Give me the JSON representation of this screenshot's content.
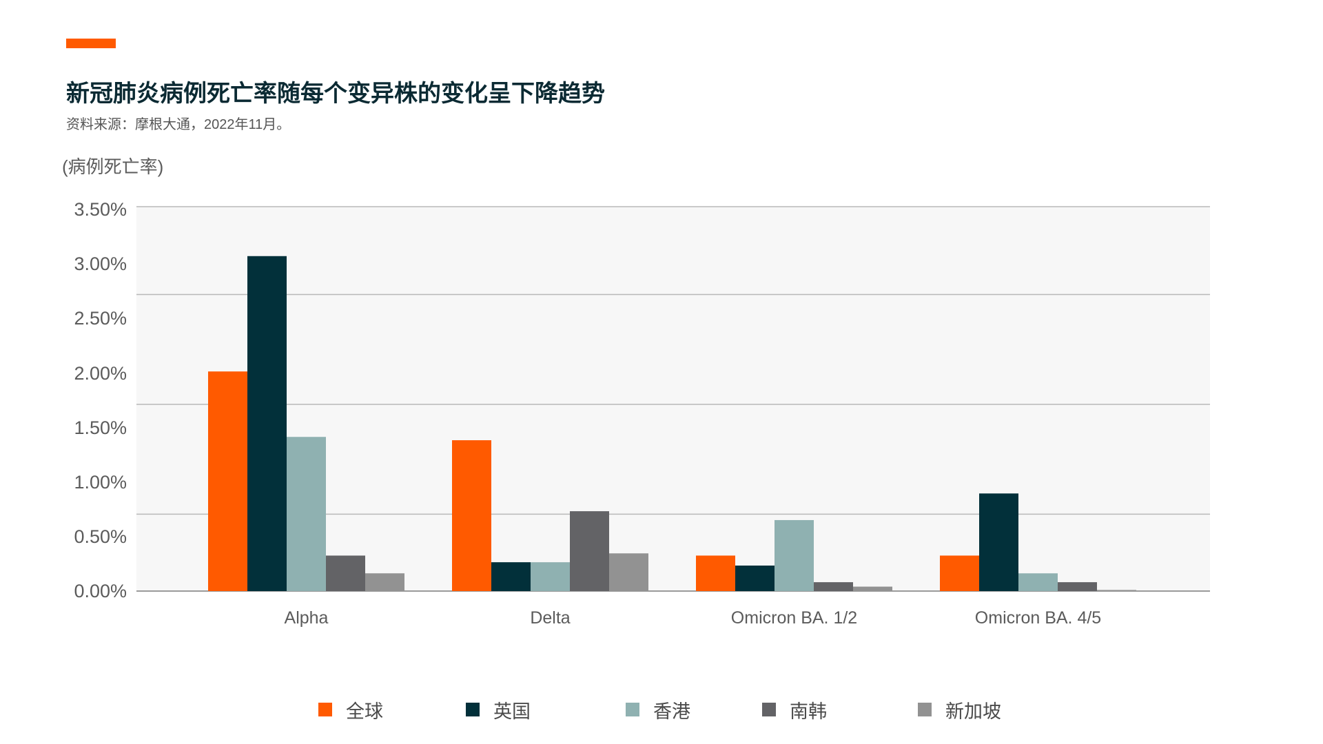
{
  "header": {
    "title": "新冠肺炎病例死亡率随每个变异株的变化呈下降趋势",
    "source": "资料来源：摩根大通，2022年11月。",
    "accent_color": "#ff5a00"
  },
  "chart_data": {
    "type": "bar",
    "title": "新冠肺炎病例死亡率随每个变异株的变化呈下降趋势",
    "ylabel": "(病例死亡率)",
    "xlabel": "",
    "ylim": [
      0,
      3.5
    ],
    "yticks": [
      "0.00%",
      "0.50%",
      "1.00%",
      "1.50%",
      "2.00%",
      "2.50%",
      "3.00%",
      "3.50%"
    ],
    "ytick_values": [
      0,
      0.5,
      1.0,
      1.5,
      2.0,
      2.5,
      3.0,
      3.5
    ],
    "categories": [
      "Alpha",
      "Delta",
      "Omicron BA. 1/2",
      "Omicron BA. 4/5"
    ],
    "series": [
      {
        "name": "全球",
        "color": "#ff5a00",
        "values": [
          1.98,
          1.36,
          0.32,
          0.32
        ]
      },
      {
        "name": "英国",
        "color": "#02303a",
        "values": [
          3.02,
          0.26,
          0.23,
          0.88
        ]
      },
      {
        "name": "香港",
        "color": "#8fb1b1",
        "values": [
          1.39,
          0.26,
          0.64,
          0.16
        ]
      },
      {
        "name": "南韩",
        "color": "#636366",
        "values": [
          0.32,
          0.72,
          0.08,
          0.08
        ]
      },
      {
        "name": "新加坡",
        "color": "#929292",
        "values": [
          0.16,
          0.34,
          0.04,
          0.01
        ]
      }
    ],
    "grid": true,
    "legend_position": "bottom"
  }
}
